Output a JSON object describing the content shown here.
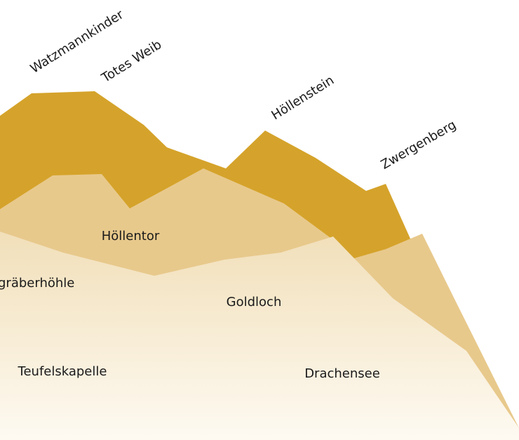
{
  "peaks": [
    "Watzmannkinder",
    "Totes Weib",
    "Höllenstein",
    "Zwergenberg"
  ],
  "places": [
    "Höllentor",
    "gräberhöhle",
    "Goldloch",
    "Teufelskapelle",
    "Drachensee"
  ]
}
